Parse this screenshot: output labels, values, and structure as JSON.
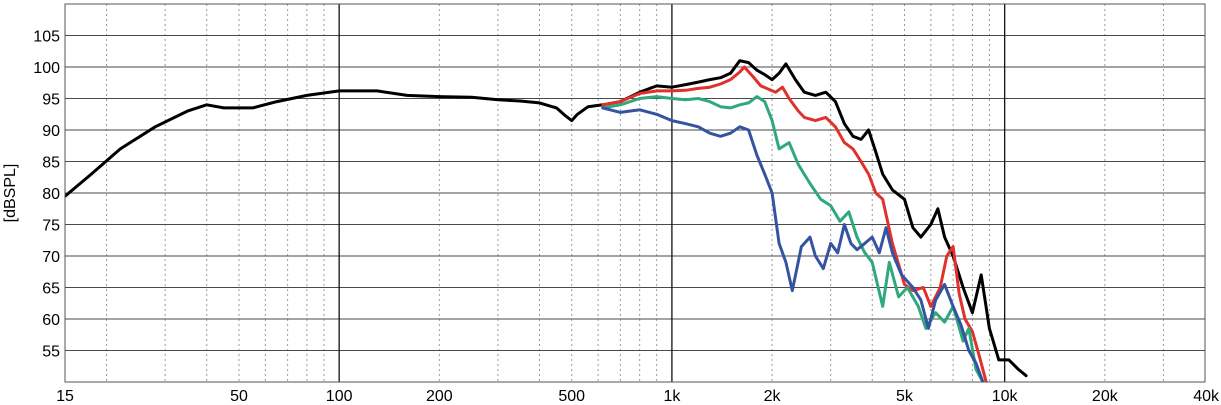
{
  "chart_data": {
    "type": "line",
    "ylabel": "[dBSPL]",
    "x_scale": "log",
    "xlim": [
      15,
      40000
    ],
    "ylim": [
      50,
      110
    ],
    "grid": true,
    "x_major_ticks": [
      10,
      100,
      1000,
      10000
    ],
    "x_tick_labels": [
      {
        "value": 15,
        "label": "15"
      },
      {
        "value": 50,
        "label": "50"
      },
      {
        "value": 100,
        "label": "100"
      },
      {
        "value": 200,
        "label": "200"
      },
      {
        "value": 500,
        "label": "500"
      },
      {
        "value": 1000,
        "label": "1k"
      },
      {
        "value": 2000,
        "label": "2k"
      },
      {
        "value": 5000,
        "label": "5k"
      },
      {
        "value": 10000,
        "label": "10k"
      },
      {
        "value": 20000,
        "label": "20k"
      },
      {
        "value": 40000,
        "label": "40k"
      }
    ],
    "y_ticks": [
      55,
      60,
      65,
      70,
      75,
      80,
      85,
      90,
      95,
      100,
      105
    ],
    "series": [
      {
        "color": "#000000",
        "points": [
          [
            15,
            79.5
          ],
          [
            18,
            83
          ],
          [
            22,
            87
          ],
          [
            28,
            90.5
          ],
          [
            35,
            93
          ],
          [
            40,
            94
          ],
          [
            45,
            93.5
          ],
          [
            55,
            93.5
          ],
          [
            65,
            94.5
          ],
          [
            80,
            95.5
          ],
          [
            100,
            96.2
          ],
          [
            130,
            96.2
          ],
          [
            160,
            95.5
          ],
          [
            200,
            95.3
          ],
          [
            250,
            95.2
          ],
          [
            300,
            94.8
          ],
          [
            350,
            94.6
          ],
          [
            400,
            94.3
          ],
          [
            450,
            93.5
          ],
          [
            480,
            92.2
          ],
          [
            500,
            91.5
          ],
          [
            520,
            92.5
          ],
          [
            560,
            93.7
          ],
          [
            620,
            94
          ],
          [
            700,
            94.5
          ],
          [
            800,
            96
          ],
          [
            900,
            97
          ],
          [
            1000,
            96.8
          ],
          [
            1100,
            97.2
          ],
          [
            1200,
            97.6
          ],
          [
            1300,
            98
          ],
          [
            1400,
            98.3
          ],
          [
            1500,
            99
          ],
          [
            1600,
            101
          ],
          [
            1700,
            100.7
          ],
          [
            1800,
            99.5
          ],
          [
            1900,
            98.8
          ],
          [
            2000,
            98
          ],
          [
            2100,
            99
          ],
          [
            2200,
            100.5
          ],
          [
            2350,
            98
          ],
          [
            2500,
            96
          ],
          [
            2700,
            95.5
          ],
          [
            2900,
            96
          ],
          [
            3100,
            94.5
          ],
          [
            3300,
            91
          ],
          [
            3500,
            89
          ],
          [
            3700,
            88.5
          ],
          [
            3900,
            90
          ],
          [
            4100,
            86.5
          ],
          [
            4300,
            83
          ],
          [
            4600,
            80.5
          ],
          [
            5000,
            79
          ],
          [
            5300,
            74.5
          ],
          [
            5600,
            73
          ],
          [
            6000,
            75
          ],
          [
            6300,
            77.5
          ],
          [
            6600,
            73
          ],
          [
            7000,
            70
          ],
          [
            7500,
            65
          ],
          [
            8000,
            61
          ],
          [
            8500,
            67
          ],
          [
            9000,
            58.5
          ],
          [
            9600,
            53.5
          ],
          [
            10300,
            53.5
          ],
          [
            11000,
            52
          ],
          [
            11600,
            51
          ]
        ]
      },
      {
        "color": "#e0312f",
        "points": [
          [
            620,
            94
          ],
          [
            700,
            94.5
          ],
          [
            800,
            95.8
          ],
          [
            900,
            96.2
          ],
          [
            1000,
            96.2
          ],
          [
            1100,
            96.3
          ],
          [
            1200,
            96.6
          ],
          [
            1300,
            96.8
          ],
          [
            1400,
            97.3
          ],
          [
            1500,
            98
          ],
          [
            1600,
            99.2
          ],
          [
            1650,
            100
          ],
          [
            1750,
            98.5
          ],
          [
            1850,
            97
          ],
          [
            1950,
            96.5
          ],
          [
            2050,
            96
          ],
          [
            2150,
            96.8
          ],
          [
            2250,
            95
          ],
          [
            2400,
            93
          ],
          [
            2500,
            92
          ],
          [
            2700,
            91.5
          ],
          [
            2900,
            92
          ],
          [
            3100,
            90.5
          ],
          [
            3300,
            88
          ],
          [
            3500,
            87
          ],
          [
            3700,
            85
          ],
          [
            3900,
            83
          ],
          [
            4100,
            80
          ],
          [
            4300,
            79
          ],
          [
            4600,
            72
          ],
          [
            5000,
            65.5
          ],
          [
            5300,
            64.5
          ],
          [
            5700,
            65
          ],
          [
            6000,
            62
          ],
          [
            6400,
            65
          ],
          [
            6700,
            70
          ],
          [
            7000,
            71.5
          ],
          [
            7300,
            64
          ],
          [
            7600,
            60
          ],
          [
            8000,
            58
          ],
          [
            8400,
            54
          ],
          [
            8800,
            50
          ]
        ]
      },
      {
        "color": "#2fa97c",
        "points": [
          [
            620,
            93.5
          ],
          [
            700,
            94
          ],
          [
            800,
            95
          ],
          [
            900,
            95.3
          ],
          [
            1000,
            95
          ],
          [
            1100,
            94.8
          ],
          [
            1200,
            95
          ],
          [
            1300,
            94.5
          ],
          [
            1400,
            93.7
          ],
          [
            1500,
            93.5
          ],
          [
            1600,
            94
          ],
          [
            1700,
            94.3
          ],
          [
            1800,
            95.3
          ],
          [
            1900,
            94.5
          ],
          [
            2000,
            91.5
          ],
          [
            2100,
            87
          ],
          [
            2250,
            88
          ],
          [
            2400,
            84.5
          ],
          [
            2600,
            81.5
          ],
          [
            2800,
            79
          ],
          [
            3000,
            78
          ],
          [
            3200,
            75.5
          ],
          [
            3400,
            77
          ],
          [
            3600,
            73
          ],
          [
            3800,
            70.5
          ],
          [
            4000,
            69
          ],
          [
            4300,
            62
          ],
          [
            4500,
            69
          ],
          [
            4800,
            63.5
          ],
          [
            5100,
            65
          ],
          [
            5500,
            62
          ],
          [
            5800,
            58.5
          ],
          [
            6200,
            61
          ],
          [
            6600,
            59.5
          ],
          [
            7000,
            62
          ],
          [
            7500,
            56.5
          ],
          [
            7800,
            58.5
          ],
          [
            8200,
            52
          ],
          [
            8600,
            50
          ]
        ]
      },
      {
        "color": "#3553a0",
        "points": [
          [
            620,
            93.5
          ],
          [
            700,
            92.8
          ],
          [
            800,
            93.2
          ],
          [
            900,
            92.5
          ],
          [
            1000,
            91.5
          ],
          [
            1100,
            91
          ],
          [
            1200,
            90.5
          ],
          [
            1300,
            89.5
          ],
          [
            1400,
            89
          ],
          [
            1500,
            89.5
          ],
          [
            1600,
            90.5
          ],
          [
            1700,
            90
          ],
          [
            1800,
            86
          ],
          [
            1900,
            83
          ],
          [
            2000,
            80
          ],
          [
            2100,
            72
          ],
          [
            2200,
            69
          ],
          [
            2300,
            64.5
          ],
          [
            2450,
            71.5
          ],
          [
            2600,
            73
          ],
          [
            2700,
            70
          ],
          [
            2850,
            68
          ],
          [
            3000,
            72
          ],
          [
            3150,
            70.5
          ],
          [
            3300,
            75
          ],
          [
            3450,
            72
          ],
          [
            3600,
            71
          ],
          [
            3800,
            72
          ],
          [
            4000,
            73
          ],
          [
            4200,
            70.5
          ],
          [
            4400,
            74.5
          ],
          [
            4600,
            70.5
          ],
          [
            4900,
            67
          ],
          [
            5300,
            65
          ],
          [
            5600,
            63
          ],
          [
            5900,
            58.5
          ],
          [
            6200,
            63
          ],
          [
            6600,
            65.5
          ],
          [
            7000,
            62
          ],
          [
            7400,
            59
          ],
          [
            7800,
            55
          ],
          [
            8200,
            53
          ],
          [
            8600,
            50
          ]
        ]
      }
    ]
  }
}
